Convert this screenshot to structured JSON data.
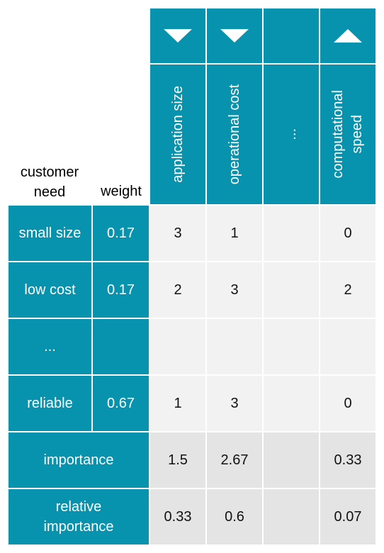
{
  "corner": {
    "need_label": "customer\nneed",
    "weight_label": "weight"
  },
  "characteristics": [
    {
      "name": "application size",
      "direction": "down"
    },
    {
      "name": "operational cost",
      "direction": "down"
    },
    {
      "name": "...",
      "direction": ""
    },
    {
      "name": "computational\nspeed",
      "direction": "up"
    }
  ],
  "needs": [
    {
      "name": "small size",
      "weight": "0.17",
      "values": [
        "3",
        "1",
        "",
        "0"
      ]
    },
    {
      "name": "low cost",
      "weight": "0.17",
      "values": [
        "2",
        "3",
        "",
        "2"
      ]
    },
    {
      "name": "...",
      "weight": "",
      "values": [
        "",
        "",
        "",
        ""
      ]
    },
    {
      "name": "reliable",
      "weight": "0.67",
      "values": [
        "1",
        "3",
        "",
        "0"
      ]
    }
  ],
  "summary": [
    {
      "label": "importance",
      "values": [
        "1.5",
        "2.67",
        "",
        "0.33"
      ]
    },
    {
      "label": "relative\nimportance",
      "values": [
        "0.33",
        "0.6",
        "",
        "0.07"
      ]
    }
  ],
  "colors": {
    "header_teal": "#0792ae",
    "matrix_bg": "#f2f2f2",
    "summary_bg": "#e4e4e4",
    "grid_line": "#ffffff"
  }
}
